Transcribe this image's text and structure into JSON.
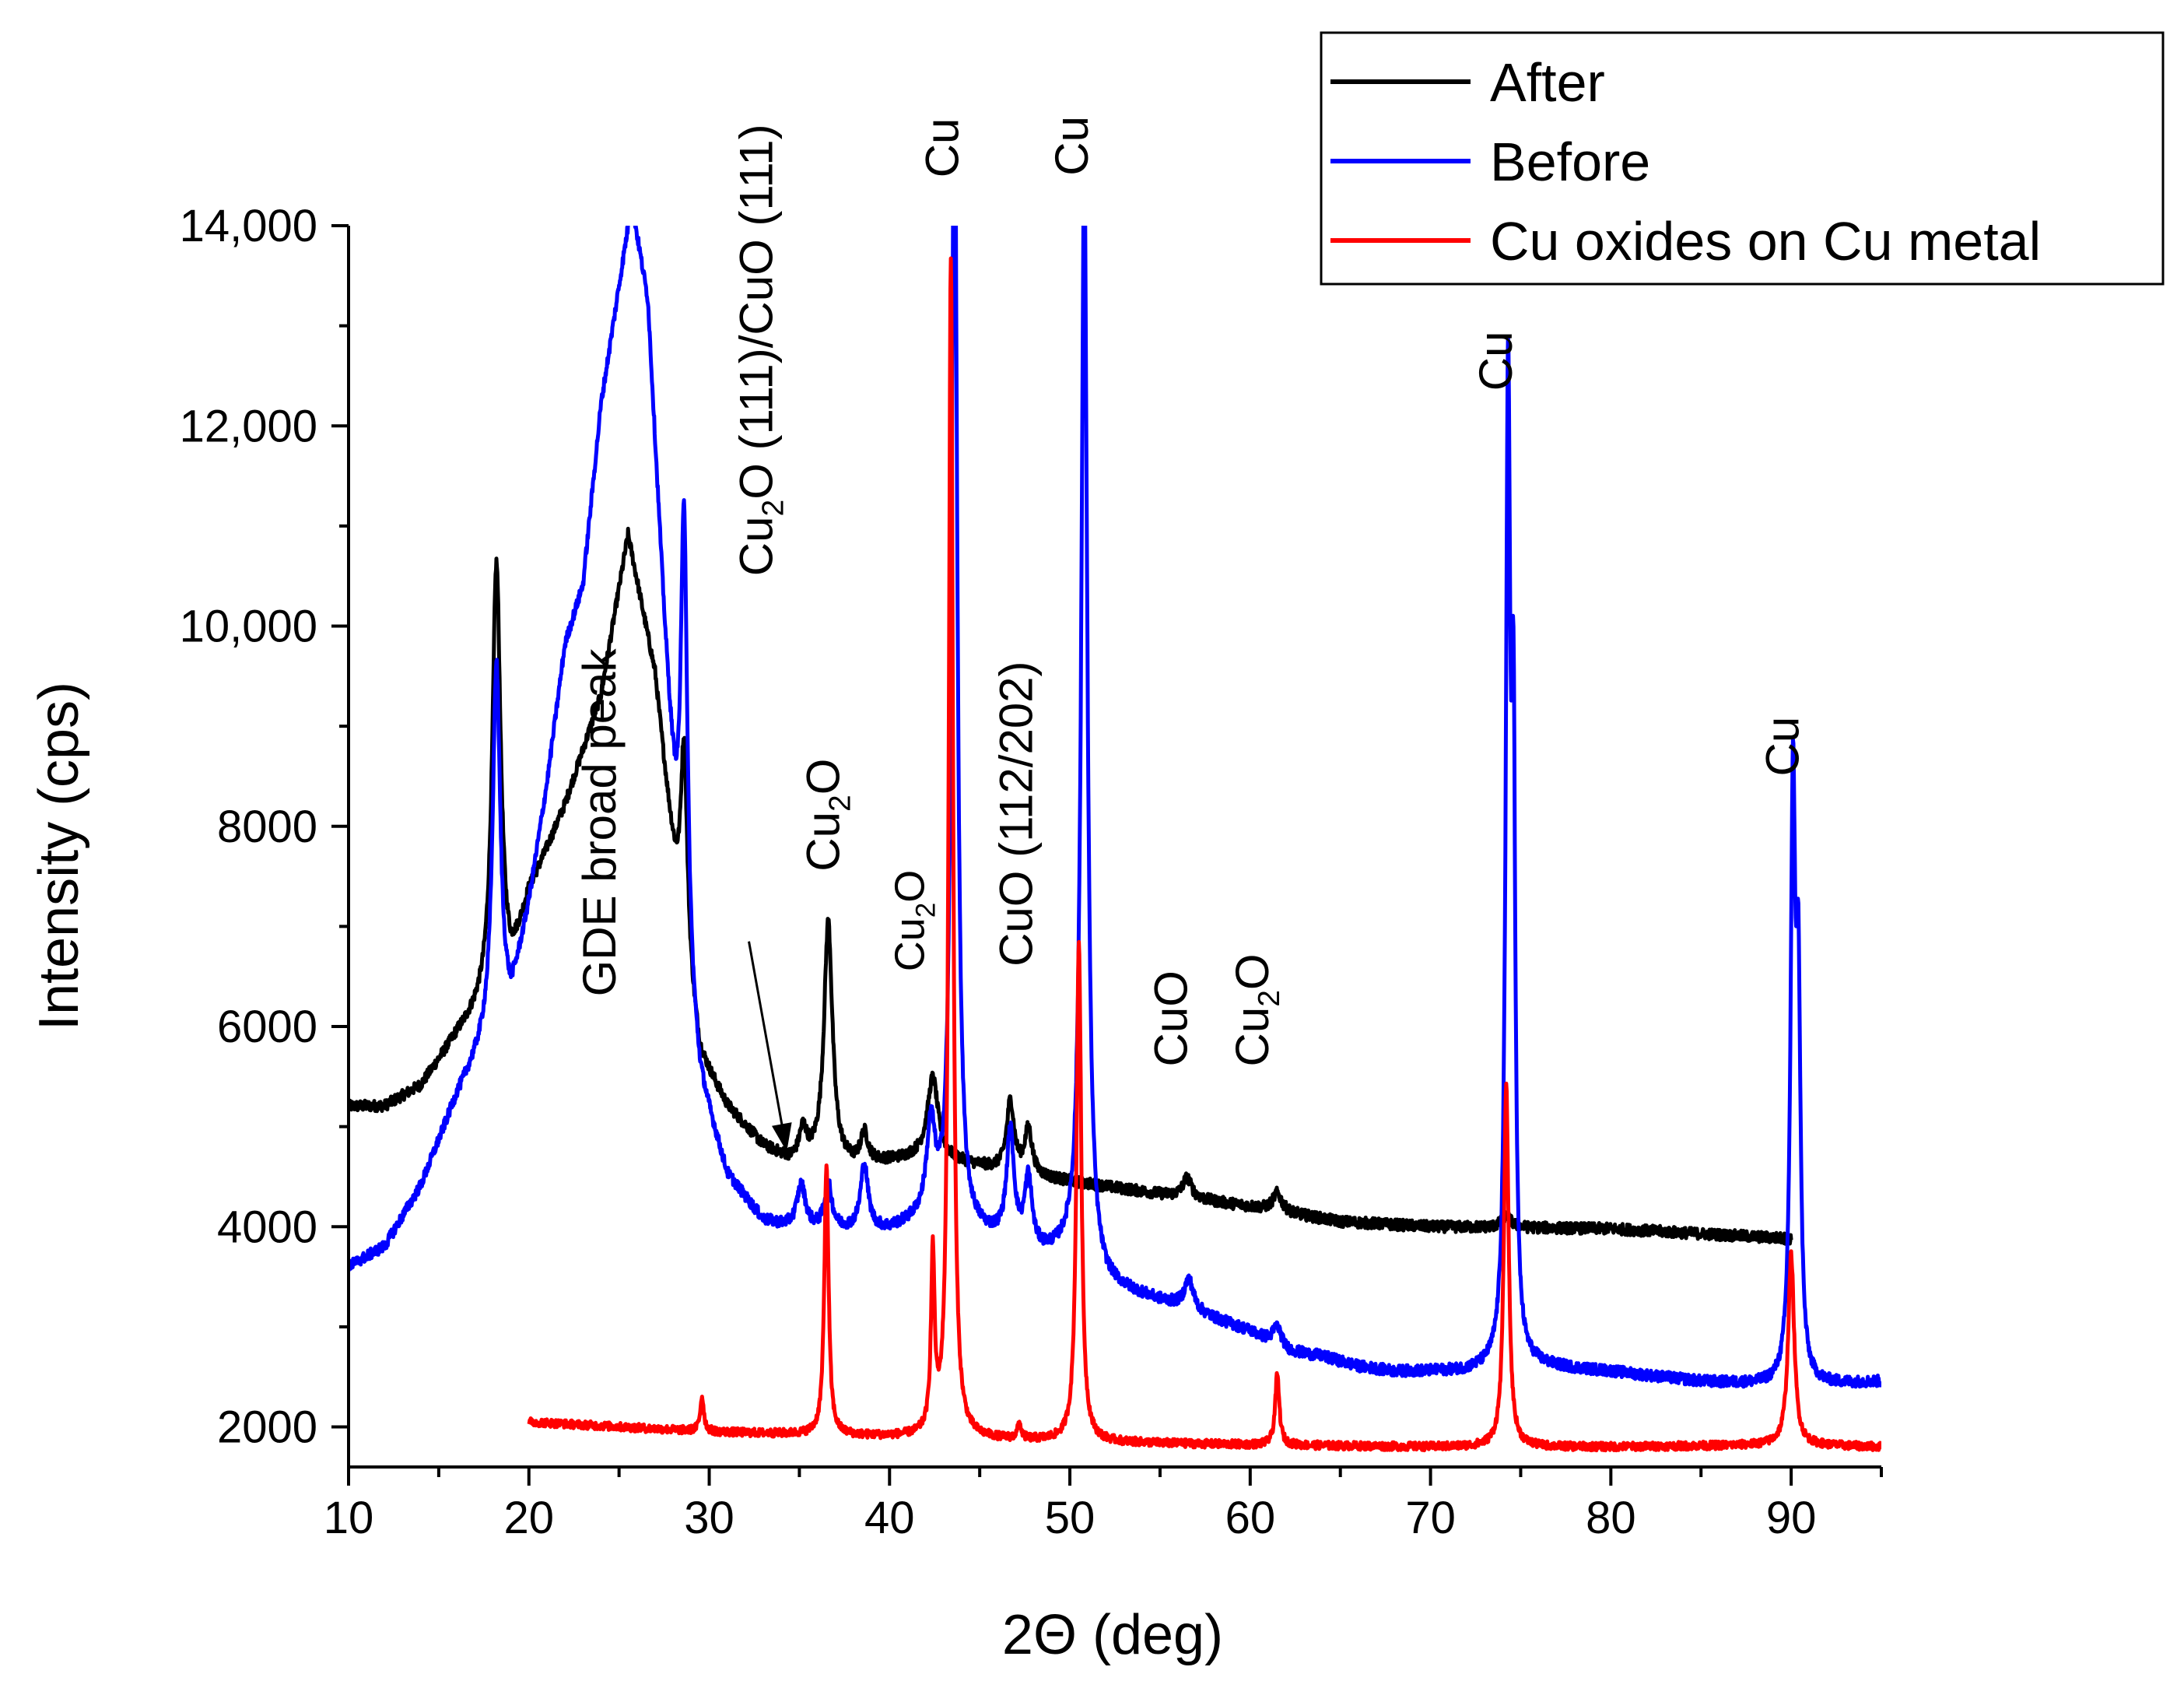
{
  "chart_data": {
    "type": "line",
    "title": "",
    "xlabel": "2Θ (deg)",
    "ylabel": "Intensity (cps)",
    "xlim": [
      10,
      95
    ],
    "ylim": [
      1600,
      14000
    ],
    "x_ticks": [
      10,
      20,
      30,
      40,
      50,
      60,
      70,
      80,
      90
    ],
    "y_ticks": [
      {
        "value": 2000,
        "label": "2000"
      },
      {
        "value": 4000,
        "label": "4000"
      },
      {
        "value": 6000,
        "label": "6000"
      },
      {
        "value": 8000,
        "label": "8000"
      },
      {
        "value": 10000,
        "label": "10,000"
      },
      {
        "value": 12000,
        "label": "12,000"
      },
      {
        "value": 14000,
        "label": "14,000"
      }
    ],
    "legend_position": "top-right",
    "series": [
      {
        "name": "After",
        "color": "#000000",
        "x_range": [
          10,
          90
        ],
        "background": [
          [
            10,
            5200
          ],
          [
            12,
            5200
          ],
          [
            14,
            5400
          ],
          [
            16,
            5900
          ],
          [
            17.5,
            6200
          ],
          [
            19,
            6500
          ],
          [
            20,
            7300
          ],
          [
            22,
            8200
          ],
          [
            24,
            9300
          ],
          [
            25.5,
            10900
          ],
          [
            27,
            9500
          ],
          [
            28.5,
            6800
          ],
          [
            29.5,
            5700
          ],
          [
            31,
            5200
          ],
          [
            33,
            4800
          ],
          [
            34.5,
            4650
          ],
          [
            36,
            4650
          ],
          [
            38,
            4600
          ],
          [
            40,
            4650
          ],
          [
            42,
            4700
          ],
          [
            45,
            4600
          ],
          [
            48,
            4500
          ],
          [
            52,
            4400
          ],
          [
            56,
            4300
          ],
          [
            60,
            4200
          ],
          [
            65,
            4050
          ],
          [
            70,
            4000
          ],
          [
            80,
            3980
          ],
          [
            90,
            3880
          ]
        ],
        "peaks": [
          [
            18.2,
            4300,
            0.28
          ],
          [
            28.6,
            2200,
            0.22
          ],
          [
            35.2,
            300,
            0.25
          ],
          [
            36.6,
            2400,
            0.28
          ],
          [
            38.6,
            300,
            0.25
          ],
          [
            42.4,
            800,
            0.35
          ],
          [
            46.7,
            700,
            0.25
          ],
          [
            47.7,
            450,
            0.25
          ],
          [
            56.5,
            200,
            0.3
          ],
          [
            61.5,
            180,
            0.3
          ],
          [
            74.2,
            120,
            0.3
          ]
        ]
      },
      {
        "name": "Before",
        "color": "#0000ff",
        "x_range": [
          10,
          95
        ],
        "background": [
          [
            10,
            3600
          ],
          [
            12,
            3800
          ],
          [
            14,
            4400
          ],
          [
            16,
            5300
          ],
          [
            18,
            6000
          ],
          [
            19,
            6200
          ],
          [
            20,
            7200
          ],
          [
            21,
            8400
          ],
          [
            22,
            9800
          ],
          [
            23,
            10400
          ],
          [
            24,
            12200
          ],
          [
            25.7,
            14200
          ],
          [
            26.6,
            13200
          ],
          [
            27.5,
            10000
          ],
          [
            28.5,
            6600
          ],
          [
            29.5,
            5400
          ],
          [
            31,
            4500
          ],
          [
            33,
            4050
          ],
          [
            35,
            3950
          ],
          [
            37,
            3950
          ],
          [
            40,
            3950
          ],
          [
            42,
            4050
          ],
          [
            44,
            3950
          ],
          [
            46,
            3850
          ],
          [
            48,
            3700
          ],
          [
            50,
            3700
          ],
          [
            52,
            3400
          ],
          [
            56,
            3200
          ],
          [
            60,
            2950
          ],
          [
            62,
            2750
          ],
          [
            64,
            2700
          ],
          [
            66,
            2600
          ],
          [
            68,
            2550
          ],
          [
            72,
            2550
          ],
          [
            76,
            2600
          ],
          [
            80,
            2550
          ],
          [
            85,
            2450
          ],
          [
            90,
            2400
          ],
          [
            95,
            2450
          ]
        ],
        "peaks": [
          [
            18.2,
            3600,
            0.25
          ],
          [
            28.6,
            4800,
            0.22
          ],
          [
            35.1,
            450,
            0.3
          ],
          [
            36.6,
            450,
            0.25
          ],
          [
            38.6,
            650,
            0.25
          ],
          [
            42.3,
            900,
            0.28
          ],
          [
            43.6,
            12000,
            0.18
          ],
          [
            46.7,
            1100,
            0.25
          ],
          [
            47.7,
            700,
            0.25
          ],
          [
            50.8,
            11000,
            0.2
          ],
          [
            56.6,
            300,
            0.3
          ],
          [
            61.5,
            200,
            0.3
          ],
          [
            74.3,
            9600,
            0.15
          ],
          [
            74.6,
            5500,
            0.12
          ],
          [
            90.1,
            5800,
            0.16
          ],
          [
            90.4,
            3500,
            0.14
          ]
        ]
      },
      {
        "name": "Cu oxides on Cu metal",
        "color": "#ff0000",
        "x_range": [
          20,
          95
        ],
        "background": [
          [
            20,
            2050
          ],
          [
            30,
            1950
          ],
          [
            40,
            1900
          ],
          [
            50,
            1850
          ],
          [
            60,
            1820
          ],
          [
            70,
            1800
          ],
          [
            80,
            1800
          ],
          [
            90,
            1820
          ],
          [
            95,
            1800
          ]
        ],
        "peaks": [
          [
            29.6,
            350,
            0.12
          ],
          [
            36.5,
            2700,
            0.14
          ],
          [
            42.4,
            1750,
            0.12
          ],
          [
            43.4,
            11800,
            0.14
          ],
          [
            47.2,
            150,
            0.12
          ],
          [
            50.5,
            5000,
            0.16
          ],
          [
            61.5,
            700,
            0.14
          ],
          [
            74.2,
            3600,
            0.16
          ],
          [
            90.0,
            1900,
            0.2
          ]
        ]
      }
    ],
    "annotations": [
      {
        "id": "gde",
        "text": "GDE broad peak",
        "x": 24.8,
        "y": 6300
      },
      {
        "id": "cu2o-cuo",
        "text_parts": [
          "Cu",
          "2",
          "O (111)/CuO (111)"
        ],
        "x": 33.5,
        "y": 10500
      },
      {
        "id": "cu2o-37",
        "text_parts": [
          "Cu",
          "2",
          "O"
        ],
        "x": 37.2,
        "y": 7550
      },
      {
        "id": "cu2o-42",
        "text_parts": [
          "Cu",
          "2",
          "O"
        ],
        "x": 41.9,
        "y": 6550
      },
      {
        "id": "cu-43",
        "text": "Cu",
        "x": 43.8,
        "y": 14480
      },
      {
        "id": "cuo-112",
        "text": "CuO (112/202)",
        "x": 47.9,
        "y": 6600
      },
      {
        "id": "cu-51",
        "text": "Cu",
        "x": 51.0,
        "y": 14500
      },
      {
        "id": "cuo-56",
        "text": "CuO",
        "x": 56.5,
        "y": 5600
      },
      {
        "id": "cu2o-61",
        "text_parts": [
          "Cu",
          "2",
          "O"
        ],
        "x": 61.0,
        "y": 5600
      },
      {
        "id": "cu-74",
        "text": "Cu",
        "x": 74.5,
        "y": 12350
      },
      {
        "id": "cu-90",
        "text": "Cu",
        "x": 90.4,
        "y": 8500
      }
    ],
    "arrow": {
      "from": [
        32.2,
        6850
      ],
      "to": [
        34.3,
        4750
      ]
    }
  }
}
